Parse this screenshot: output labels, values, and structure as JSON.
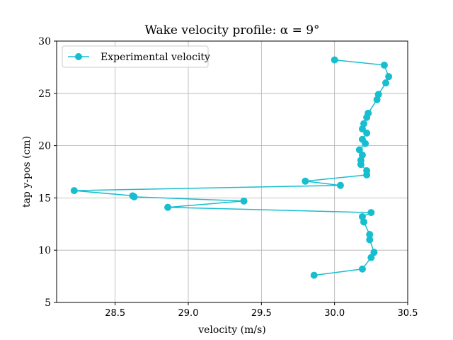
{
  "chart_data": {
    "type": "line",
    "title": "Wake velocity profile: α = 9°",
    "xlabel": "velocity (m/s)",
    "ylabel": "tap y-pos (cm)",
    "xlim": [
      28.1,
      30.5
    ],
    "ylim": [
      5,
      30
    ],
    "xticks": [
      28.5,
      29.0,
      29.5,
      30.0,
      30.5
    ],
    "xtick_labels": [
      "28.5",
      "29.0",
      "29.5",
      "30.0",
      "30.5"
    ],
    "yticks": [
      5,
      10,
      15,
      20,
      25,
      30
    ],
    "ytick_labels": [
      "5",
      "10",
      "15",
      "20",
      "25",
      "30"
    ],
    "grid": true,
    "legend_position": "top-left",
    "series": [
      {
        "name": "Experimental velocity",
        "color": "#17becf",
        "marker": "circle",
        "points": [
          [
            30.0,
            28.2
          ],
          [
            30.34,
            27.7
          ],
          [
            30.37,
            26.6
          ],
          [
            30.35,
            26.0
          ],
          [
            30.3,
            24.9
          ],
          [
            30.29,
            24.4
          ],
          [
            30.23,
            23.1
          ],
          [
            30.22,
            22.7
          ],
          [
            30.2,
            22.1
          ],
          [
            30.19,
            21.6
          ],
          [
            30.22,
            21.2
          ],
          [
            30.19,
            20.6
          ],
          [
            30.21,
            20.2
          ],
          [
            30.17,
            19.6
          ],
          [
            30.19,
            19.1
          ],
          [
            30.18,
            18.6
          ],
          [
            30.18,
            18.2
          ],
          [
            30.22,
            17.6
          ],
          [
            30.22,
            17.2
          ],
          [
            29.8,
            16.6
          ],
          [
            30.04,
            16.2
          ],
          [
            28.22,
            15.7
          ],
          [
            28.62,
            15.2
          ],
          [
            28.63,
            15.1
          ],
          [
            29.38,
            14.7
          ],
          [
            28.86,
            14.1
          ],
          [
            30.25,
            13.6
          ],
          [
            30.19,
            13.2
          ],
          [
            30.2,
            12.7
          ],
          [
            30.24,
            11.5
          ],
          [
            30.24,
            11.0
          ],
          [
            30.27,
            9.8
          ],
          [
            30.25,
            9.3
          ],
          [
            30.19,
            8.2
          ],
          [
            29.86,
            7.6
          ]
        ]
      }
    ]
  }
}
